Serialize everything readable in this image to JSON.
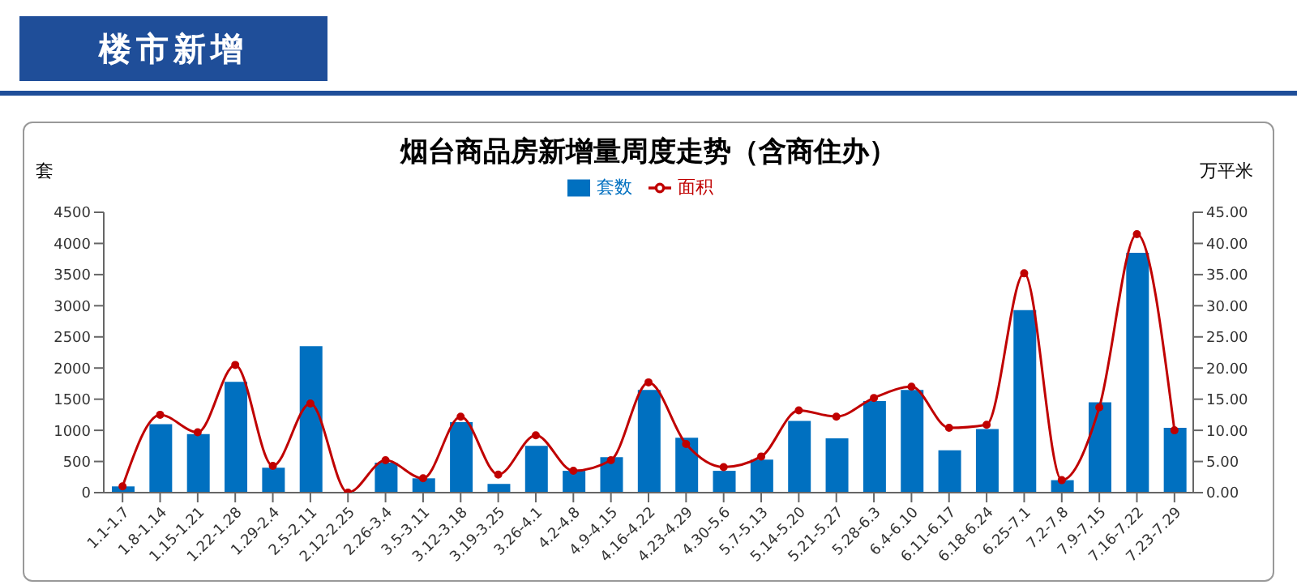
{
  "chart_data": {
    "type": "bar",
    "title": "烟台商品房新增量周度走势（含商住办）",
    "annotations": [
      "楼市新增"
    ],
    "ylabel": "套",
    "y2label": "万平米",
    "categories": [
      "1.1-1.7",
      "1.8-1.14",
      "1.15-1.21",
      "1.22-1.28",
      "1.29-2.4",
      "2.5-2.11",
      "2.12-2.25",
      "2.26-3.4",
      "3.5-3.11",
      "3.12-3.18",
      "3.19-3.25",
      "3.26-4.1",
      "4.2-4.8",
      "4.9-4.15",
      "4.16-4.22",
      "4.23-4.29",
      "4.30-5.6",
      "5.7-5.13",
      "5.14-5.20",
      "5.21-5.27",
      "5.28-6.3",
      "6.4-6.10",
      "6.11-6.17",
      "6.18-6.24",
      "6.25-7.1",
      "7.2-7.8",
      "7.9-7.15",
      "7.16-7.22",
      "7.23-7.29"
    ],
    "series": [
      {
        "name": "套数",
        "color": "#0070c0",
        "values": [
          100,
          1100,
          940,
          1780,
          400,
          2350,
          0,
          480,
          230,
          1130,
          140,
          750,
          350,
          570,
          1650,
          880,
          350,
          530,
          1150,
          870,
          1470,
          1650,
          680,
          1020,
          2930,
          200,
          1450,
          3850,
          1040
        ]
      },
      {
        "name": "面积",
        "type": "line",
        "axis": "y2",
        "color": "#c00000",
        "marker": "circle",
        "values": [
          1.0,
          12.5,
          9.7,
          20.5,
          4.3,
          14.3,
          0,
          5.2,
          2.3,
          12.2,
          2.9,
          9.2,
          3.5,
          5.2,
          17.7,
          7.8,
          4.1,
          5.8,
          13.2,
          12.2,
          15.2,
          17.0,
          10.4,
          10.9,
          35.2,
          2.0,
          13.7,
          41.5,
          10.0
        ]
      }
    ],
    "ylim": [
      0,
      4500
    ],
    "yticks": [
      0,
      500,
      1000,
      1500,
      2000,
      2500,
      3000,
      3500,
      4000,
      4500
    ],
    "y2lim": [
      0,
      45
    ],
    "y2ticks": [
      {
        "value": 0,
        "label": "0.00"
      },
      {
        "value": 5,
        "label": "5.00"
      },
      {
        "value": 10,
        "label": "10.00"
      },
      {
        "value": 15,
        "label": "15.00"
      },
      {
        "value": 20,
        "label": "20.00"
      },
      {
        "value": 25,
        "label": "25.00"
      },
      {
        "value": 30,
        "label": "30.00"
      },
      {
        "value": 35,
        "label": "35.00"
      },
      {
        "value": 40,
        "label": "40.00"
      },
      {
        "value": 45,
        "label": "45.00"
      }
    ],
    "grid": false,
    "legend": "top"
  }
}
